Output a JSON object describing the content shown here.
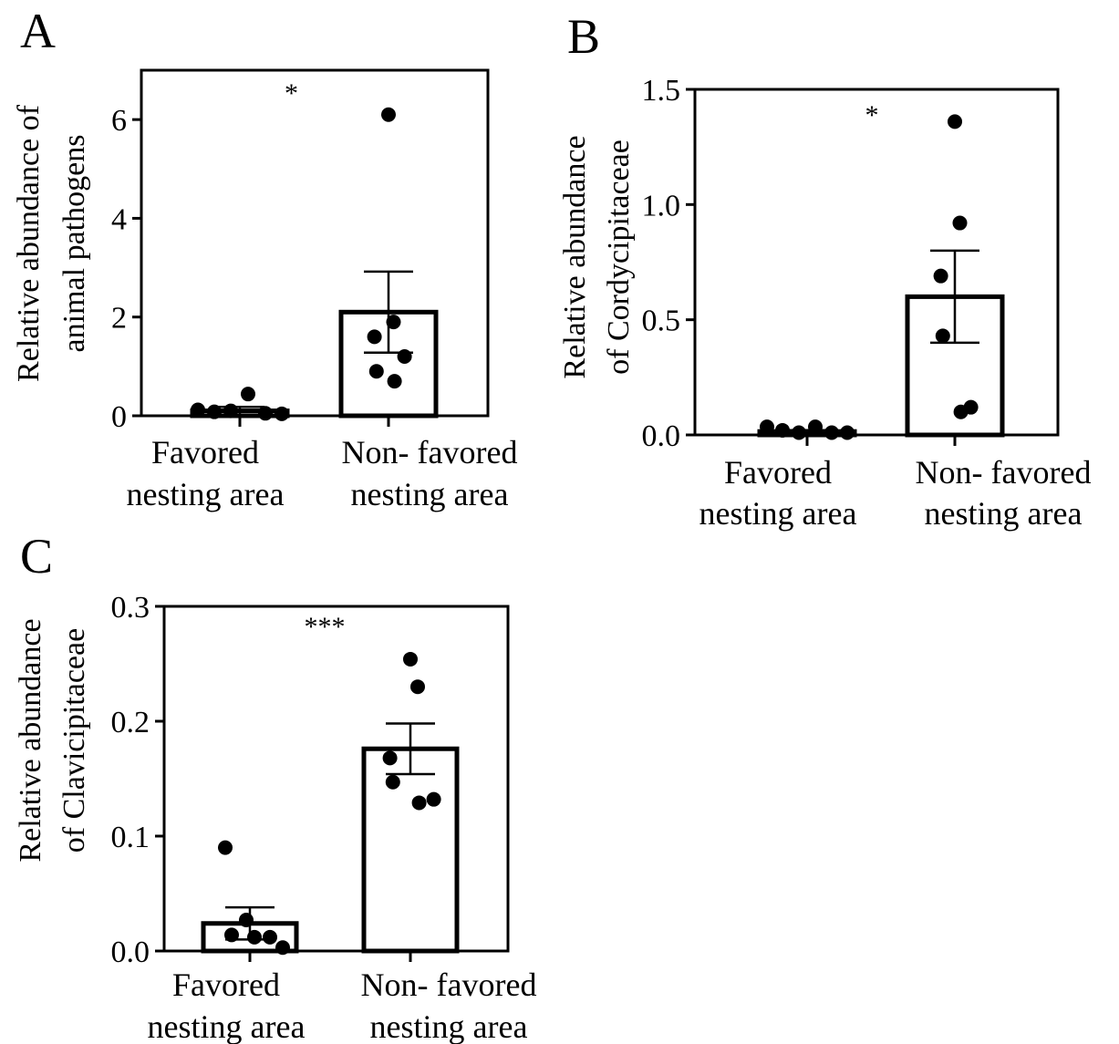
{
  "chart_data": [
    {
      "panel": "A",
      "type": "bar",
      "categories": [
        [
          "Favored",
          "nesting area"
        ],
        [
          "Non- favored",
          "nesting area"
        ]
      ],
      "ylabel": [
        "Relative abundance of",
        "animal pathogens"
      ],
      "ylim": [
        0,
        7
      ],
      "yticks": [
        0,
        2,
        4,
        6
      ],
      "ytick_labels": [
        "0",
        "2",
        "4",
        "6"
      ],
      "values": [
        0.1,
        2.1
      ],
      "sem": [
        0.08,
        0.82
      ],
      "points": [
        [
          0.12,
          0.08,
          0.1,
          0.44,
          0.05,
          0.04
        ],
        [
          6.1,
          1.9,
          1.6,
          0.9,
          1.2,
          0.7
        ]
      ],
      "significance": "*"
    },
    {
      "panel": "B",
      "type": "bar",
      "categories": [
        [
          "Favored",
          "nesting area"
        ],
        [
          "Non- favored",
          "nesting area"
        ]
      ],
      "ylabel": [
        "Relative abundance",
        "of Cordycipitaceae"
      ],
      "ylim": [
        0,
        1.5
      ],
      "yticks": [
        0,
        0.5,
        1.0,
        1.5
      ],
      "ytick_labels": [
        "0.0",
        "0.5",
        "1.0",
        "1.5"
      ],
      "values": [
        0.015,
        0.6
      ],
      "sem": [
        0.006,
        0.2
      ],
      "points": [
        [
          0.035,
          0.02,
          0.01,
          0.035,
          0.01,
          0.01
        ],
        [
          1.36,
          0.92,
          0.69,
          0.43,
          0.12,
          0.1
        ]
      ],
      "significance": "*"
    },
    {
      "panel": "C",
      "type": "bar",
      "categories": [
        [
          "Favored",
          "nesting area"
        ],
        [
          "Non- favored",
          "nesting area"
        ]
      ],
      "ylabel": [
        "Relative abundance",
        "of Clavicipitaceae"
      ],
      "ylim": [
        0,
        0.3
      ],
      "yticks": [
        0,
        0.1,
        0.2,
        0.3
      ],
      "ytick_labels": [
        "0.0",
        "0.1",
        "0.2",
        "0.3"
      ],
      "values": [
        0.024,
        0.176
      ],
      "sem": [
        0.014,
        0.022
      ],
      "points": [
        [
          0.09,
          0.027,
          0.014,
          0.012,
          0.012,
          0.003
        ],
        [
          0.254,
          0.23,
          0.168,
          0.147,
          0.132,
          0.129
        ]
      ],
      "significance": "***"
    }
  ]
}
